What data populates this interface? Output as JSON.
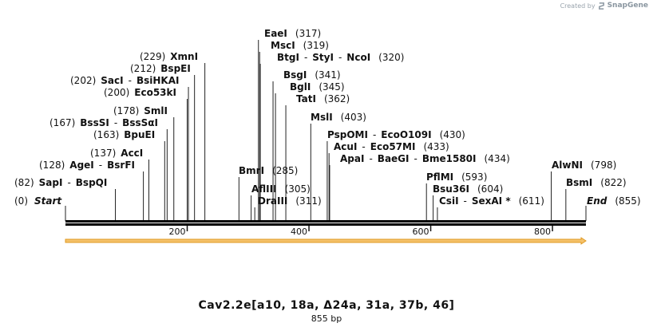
{
  "credit": {
    "created_by": "Created by",
    "brand": "SnapGene",
    "icon": "snapgene-logo-icon"
  },
  "title": "Cav2.2e[a10, 18a, Δ24a, 31a, 37b, 46]",
  "length_label": "855 bp",
  "sequence_length": 855,
  "ends": {
    "start": "Start",
    "start_pos": "(0)",
    "end": "End",
    "end_pos": "(855)"
  },
  "ticks": [
    200,
    400,
    600,
    800
  ],
  "colors": {
    "backbone": "#000000",
    "arrow_fill": "#f5c26b",
    "arrow_stroke": "#e09a22"
  },
  "sites": [
    {
      "names": [
        "SapI",
        "BspQI"
      ],
      "pos": 82,
      "label_pos": "(82)",
      "pos_first": true
    },
    {
      "names": [
        "AgeI",
        "BsrFI"
      ],
      "pos": 128,
      "label_pos": "(128)",
      "pos_first": true
    },
    {
      "names": [
        "AccI"
      ],
      "pos": 137,
      "label_pos": "(137)",
      "pos_first": true
    },
    {
      "names": [
        "BpuEI"
      ],
      "pos": 163,
      "label_pos": "(163)",
      "pos_first": true
    },
    {
      "names": [
        "BssSI",
        "BssSαI"
      ],
      "pos": 167,
      "label_pos": "(167)",
      "pos_first": true
    },
    {
      "names": [
        "SmlI"
      ],
      "pos": 178,
      "label_pos": "(178)",
      "pos_first": true
    },
    {
      "names": [
        "Eco53kI"
      ],
      "pos": 200,
      "label_pos": "(200)",
      "pos_first": true
    },
    {
      "names": [
        "SacI",
        "BsiHKAI"
      ],
      "pos": 202,
      "label_pos": "(202)",
      "pos_first": true
    },
    {
      "names": [
        "BspEI"
      ],
      "pos": 212,
      "label_pos": "(212)",
      "pos_first": true
    },
    {
      "names": [
        "XmnI"
      ],
      "pos": 229,
      "label_pos": "(229)",
      "pos_first": true
    },
    {
      "names": [
        "BmrI"
      ],
      "pos": 285,
      "label_pos": "(285)",
      "pos_first": false
    },
    {
      "names": [
        "AflIII"
      ],
      "pos": 305,
      "label_pos": "(305)",
      "pos_first": false
    },
    {
      "names": [
        "DraIII"
      ],
      "pos": 311,
      "label_pos": "(311)",
      "pos_first": false
    },
    {
      "names": [
        "EaeI"
      ],
      "pos": 317,
      "label_pos": "(317)",
      "pos_first": false
    },
    {
      "names": [
        "MscI"
      ],
      "pos": 319,
      "label_pos": "(319)",
      "pos_first": false
    },
    {
      "names": [
        "BtgI",
        "StyI",
        "NcoI"
      ],
      "pos": 320,
      "label_pos": "(320)",
      "pos_first": false
    },
    {
      "names": [
        "BsgI"
      ],
      "pos": 341,
      "label_pos": "(341)",
      "pos_first": false
    },
    {
      "names": [
        "BglI"
      ],
      "pos": 345,
      "label_pos": "(345)",
      "pos_first": false
    },
    {
      "names": [
        "TatI"
      ],
      "pos": 362,
      "label_pos": "(362)",
      "pos_first": false
    },
    {
      "names": [
        "MslI"
      ],
      "pos": 403,
      "label_pos": "(403)",
      "pos_first": false
    },
    {
      "names": [
        "PspOMI",
        "EcoO109I"
      ],
      "pos": 430,
      "label_pos": "(430)",
      "pos_first": false
    },
    {
      "names": [
        "AcuI",
        "Eco57MI"
      ],
      "pos": 433,
      "label_pos": "(433)",
      "pos_first": false
    },
    {
      "names": [
        "ApaI",
        "BaeGI",
        "Bme1580I"
      ],
      "pos": 434,
      "label_pos": "(434)",
      "pos_first": false
    },
    {
      "names": [
        "PflMI"
      ],
      "pos": 593,
      "label_pos": "(593)",
      "pos_first": false
    },
    {
      "names": [
        "Bsu36I"
      ],
      "pos": 604,
      "label_pos": "(604)",
      "pos_first": false
    },
    {
      "names": [
        "CsiI",
        "SexAI *"
      ],
      "pos": 611,
      "label_pos": "(611)",
      "pos_first": false
    },
    {
      "names": [
        "AlwNI"
      ],
      "pos": 798,
      "label_pos": "(798)",
      "pos_first": false
    },
    {
      "names": [
        "BsmI"
      ],
      "pos": 822,
      "label_pos": "(822)",
      "pos_first": false
    }
  ]
}
